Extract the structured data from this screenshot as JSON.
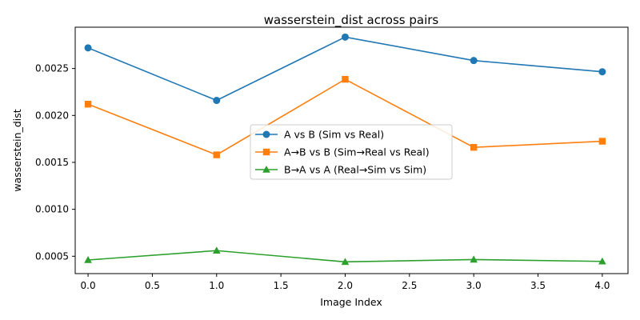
{
  "chart_data": {
    "type": "line",
    "title": "wasserstein_dist across pairs",
    "xlabel": "Image Index",
    "ylabel": "wasserstein_dist",
    "x": [
      0,
      1,
      2,
      3,
      4
    ],
    "xlim": [
      -0.1,
      4.2
    ],
    "ylim": [
      0.000315,
      0.00294
    ],
    "xticks": [
      "0.0",
      "0.5",
      "1.0",
      "1.5",
      "2.0",
      "2.5",
      "3.0",
      "3.5",
      "4.0"
    ],
    "yticks": [
      "0.0005",
      "0.0010",
      "0.0015",
      "0.0020",
      "0.0025"
    ],
    "grid": false,
    "legend_position": "center",
    "series": [
      {
        "name": "A vs B (Sim vs Real)",
        "marker": "circle",
        "color": "#1f77b4",
        "values": [
          0.00272,
          0.00216,
          0.002835,
          0.002585,
          0.002465
        ]
      },
      {
        "name": "A→B vs B (Sim→Real vs Real)",
        "marker": "square",
        "color": "#ff7f0e",
        "values": [
          0.00212,
          0.00158,
          0.002385,
          0.00166,
          0.001725
        ]
      },
      {
        "name": "B→A vs A (Real→Sim vs Sim)",
        "marker": "triangle",
        "color": "#2ca02c",
        "values": [
          0.00046,
          0.00056,
          0.00044,
          0.000465,
          0.000445
        ]
      }
    ]
  }
}
